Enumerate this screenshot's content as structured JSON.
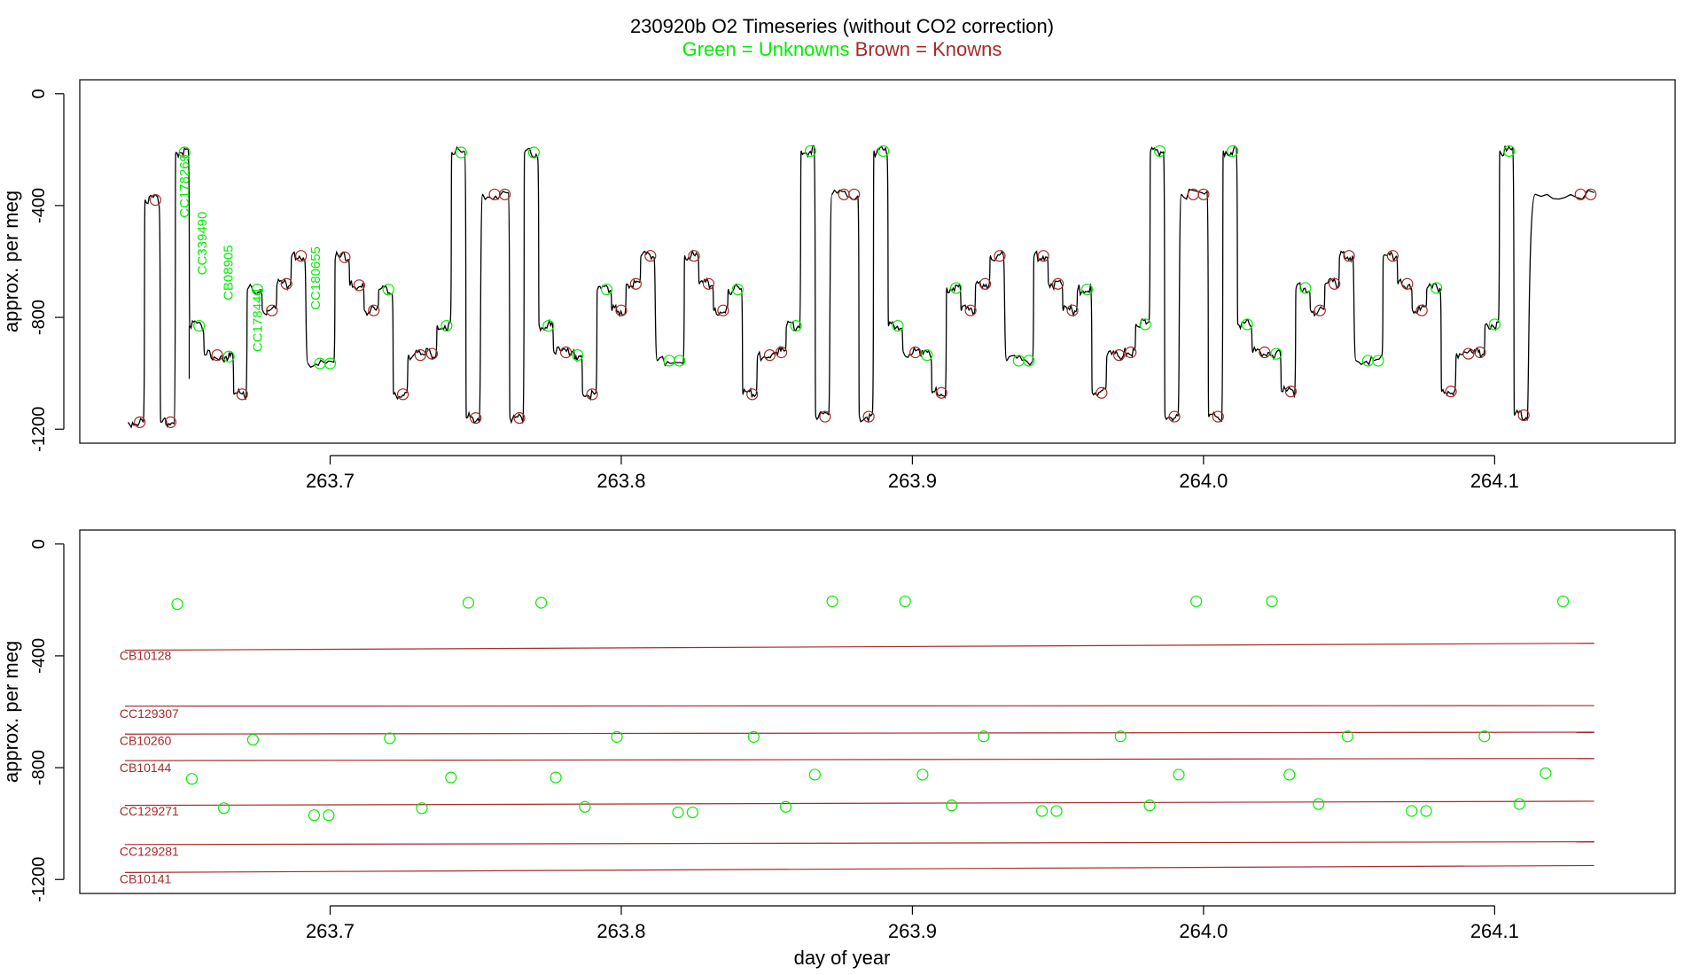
{
  "title": "230920b   O2 Timeseries (without CO2 correction)",
  "legend": {
    "unknowns": "Green = Unknowns",
    "knowns": "Brown = Knowns",
    "unknown_color": "#00ee00",
    "known_color": "#a52a2a"
  },
  "chart_data": [
    {
      "type": "line",
      "name": "timeseries",
      "ylabel": "approx. per meg",
      "xlim": [
        263.614,
        264.162
      ],
      "ylim": [
        -1250,
        50
      ],
      "xticks": [
        263.7,
        263.8,
        263.9,
        264.0,
        264.1
      ],
      "xtick_labels": [
        "263.7",
        "263.8",
        "263.9",
        "264.0",
        "264.1"
      ],
      "yticks": [
        0,
        -400,
        -800,
        -1200
      ],
      "ytick_labels": [
        "0",
        "-400",
        "-800",
        "-1200"
      ],
      "steps": [
        [
          263.6306,
          -1175,
          "k"
        ],
        [
          263.6358,
          -380,
          "k"
        ],
        [
          263.6412,
          -1175,
          "k"
        ],
        [
          263.6464,
          -210,
          "u"
        ],
        [
          263.6512,
          -830,
          "u"
        ],
        [
          263.6562,
          -935,
          "k"
        ],
        [
          263.6624,
          -940,
          "u"
        ],
        [
          263.6664,
          -1075,
          "k"
        ],
        [
          263.671,
          -700,
          "u"
        ],
        [
          263.6762,
          -775,
          "k"
        ],
        [
          263.6812,
          -680,
          "k"
        ],
        [
          263.6862,
          -580,
          "k"
        ],
        [
          263.6912,
          -965,
          "u"
        ],
        [
          263.7012,
          -585,
          "k"
        ],
        [
          263.7062,
          -685,
          "k"
        ],
        [
          263.7112,
          -775,
          "k"
        ],
        [
          263.7162,
          -700,
          "u"
        ],
        [
          263.7212,
          -1075,
          "k"
        ],
        [
          263.7262,
          -935,
          "k"
        ],
        [
          263.7322,
          -930,
          "k"
        ],
        [
          263.7362,
          -830,
          "u"
        ],
        [
          263.7412,
          -210,
          "u"
        ],
        [
          263.7462,
          -1160,
          "k"
        ],
        [
          263.7512,
          -360,
          "k"
        ],
        [
          263.7612,
          -1160,
          "k"
        ],
        [
          263.7662,
          -210,
          "u"
        ],
        [
          263.7712,
          -830,
          "u"
        ],
        [
          263.7762,
          -925,
          "k"
        ],
        [
          263.7822,
          -935,
          "u"
        ],
        [
          263.7862,
          -1075,
          "k"
        ],
        [
          263.7912,
          -700,
          "u"
        ],
        [
          263.7962,
          -775,
          "k"
        ],
        [
          263.8012,
          -680,
          "k"
        ],
        [
          263.8062,
          -580,
          "k"
        ],
        [
          263.8112,
          -955,
          "u"
        ],
        [
          263.8212,
          -580,
          "k"
        ],
        [
          263.8262,
          -680,
          "k"
        ],
        [
          263.8312,
          -775,
          "k"
        ],
        [
          263.8362,
          -700,
          "u"
        ],
        [
          263.8412,
          -1075,
          "k"
        ],
        [
          263.8462,
          -935,
          "k"
        ],
        [
          263.8522,
          -925,
          "k"
        ],
        [
          263.8562,
          -830,
          "u"
        ],
        [
          263.8612,
          -205,
          "u"
        ],
        [
          263.8662,
          -1155,
          "k"
        ],
        [
          263.8712,
          -360,
          "k"
        ],
        [
          263.8812,
          -1155,
          "k"
        ],
        [
          263.8862,
          -205,
          "u"
        ],
        [
          263.8912,
          -830,
          "u"
        ],
        [
          263.8962,
          -925,
          "k"
        ],
        [
          263.9022,
          -935,
          "u"
        ],
        [
          263.9062,
          -1070,
          "k"
        ],
        [
          263.9112,
          -695,
          "u"
        ],
        [
          263.9162,
          -775,
          "k"
        ],
        [
          263.9212,
          -680,
          "k"
        ],
        [
          263.9262,
          -580,
          "k"
        ],
        [
          263.9312,
          -955,
          "u"
        ],
        [
          263.9412,
          -580,
          "k"
        ],
        [
          263.9462,
          -680,
          "k"
        ],
        [
          263.9512,
          -775,
          "k"
        ],
        [
          263.9562,
          -700,
          "u"
        ],
        [
          263.9612,
          -1070,
          "k"
        ],
        [
          263.9662,
          -935,
          "k"
        ],
        [
          263.9722,
          -925,
          "k"
        ],
        [
          263.9762,
          -825,
          "u"
        ],
        [
          263.9812,
          -205,
          "u"
        ],
        [
          263.9862,
          -1155,
          "k"
        ],
        [
          263.9912,
          -360,
          "k"
        ],
        [
          264.0012,
          -1155,
          "k"
        ],
        [
          264.0062,
          -205,
          "u"
        ],
        [
          264.0112,
          -825,
          "u"
        ],
        [
          264.0162,
          -925,
          "k"
        ],
        [
          264.0222,
          -930,
          "u"
        ],
        [
          264.0262,
          -1065,
          "k"
        ],
        [
          264.0312,
          -695,
          "u"
        ],
        [
          264.0362,
          -775,
          "k"
        ],
        [
          264.0412,
          -680,
          "k"
        ],
        [
          264.0462,
          -580,
          "k"
        ],
        [
          264.0512,
          -955,
          "u"
        ],
        [
          264.0612,
          -580,
          "k"
        ],
        [
          264.0662,
          -680,
          "k"
        ],
        [
          264.0712,
          -775,
          "k"
        ],
        [
          264.0762,
          -695,
          "u"
        ],
        [
          264.0812,
          -1065,
          "k"
        ],
        [
          264.0862,
          -930,
          "k"
        ],
        [
          264.0922,
          -925,
          "k"
        ],
        [
          264.0962,
          -825,
          "u"
        ],
        [
          264.1012,
          -205,
          "u"
        ],
        [
          264.1062,
          -1150,
          "k"
        ],
        [
          264.1112,
          -360,
          "k"
        ]
      ],
      "end_x": 264.1342,
      "annotations": [
        {
          "text": "CC178269",
          "x": 263.6515,
          "y": -330
        },
        {
          "text": "CC339490",
          "x": 263.6575,
          "y": -535
        },
        {
          "text": "CB08905",
          "x": 263.6665,
          "y": -640
        },
        {
          "text": "CC178444",
          "x": 263.6765,
          "y": -810
        },
        {
          "text": "CC180655",
          "x": 263.6965,
          "y": -660
        }
      ]
    },
    {
      "type": "scatter",
      "name": "summary",
      "xlabel": "day of year",
      "ylabel": "approx. per meg",
      "xlim": [
        263.614,
        264.162
      ],
      "ylim": [
        -1250,
        50
      ],
      "xticks": [
        263.7,
        263.8,
        263.9,
        264.0,
        264.1
      ],
      "xtick_labels": [
        "263.7",
        "263.8",
        "263.9",
        "264.0",
        "264.1"
      ],
      "yticks": [
        0,
        -400,
        -800,
        -1200
      ],
      "ytick_labels": [
        "0",
        "-400",
        "-800",
        "-1200"
      ],
      "knowns": [
        {
          "name": "CB10128",
          "start": -380,
          "end": -355,
          "label_y": -398
        },
        {
          "name": "CC129307",
          "start": -580,
          "end": -578,
          "label_y": -607
        },
        {
          "name": "CB10260",
          "start": -680,
          "end": -673,
          "label_y": -703
        },
        {
          "name": "CB10144",
          "start": -775,
          "end": -767,
          "label_y": -800
        },
        {
          "name": "CC129271",
          "start": -935,
          "end": -920,
          "label_y": -955
        },
        {
          "name": "CC129281",
          "start": -1075,
          "end": -1065,
          "label_y": -1100
        },
        {
          "name": "CB10141",
          "start": -1175,
          "end": -1150,
          "label_y": -1198
        }
      ],
      "unknowns": [
        [
          263.6475,
          -215
        ],
        [
          263.7475,
          -210
        ],
        [
          263.7725,
          -210
        ],
        [
          263.8725,
          -205
        ],
        [
          263.8975,
          -205
        ],
        [
          263.9975,
          -205
        ],
        [
          264.0235,
          -205
        ],
        [
          264.1235,
          -205
        ],
        [
          263.6525,
          -840
        ],
        [
          263.7415,
          -835
        ],
        [
          263.7775,
          -835
        ],
        [
          263.8665,
          -825
        ],
        [
          263.9035,
          -825
        ],
        [
          263.9915,
          -825
        ],
        [
          264.0295,
          -825
        ],
        [
          264.1175,
          -820
        ],
        [
          263.6735,
          -700
        ],
        [
          263.7205,
          -695
        ],
        [
          263.7985,
          -690
        ],
        [
          263.8455,
          -690
        ],
        [
          263.9245,
          -688
        ],
        [
          263.9715,
          -688
        ],
        [
          264.0495,
          -688
        ],
        [
          264.0965,
          -688
        ],
        [
          263.6635,
          -945
        ],
        [
          263.7315,
          -945
        ],
        [
          263.7875,
          -940
        ],
        [
          263.8565,
          -940
        ],
        [
          263.9135,
          -935
        ],
        [
          263.9815,
          -935
        ],
        [
          264.0395,
          -930
        ],
        [
          264.1085,
          -930
        ],
        [
          263.6945,
          -970
        ],
        [
          263.6995,
          -970
        ],
        [
          263.8195,
          -960
        ],
        [
          263.8245,
          -960
        ],
        [
          263.9445,
          -955
        ],
        [
          263.9495,
          -955
        ],
        [
          264.0715,
          -955
        ],
        [
          264.0765,
          -955
        ]
      ]
    }
  ]
}
